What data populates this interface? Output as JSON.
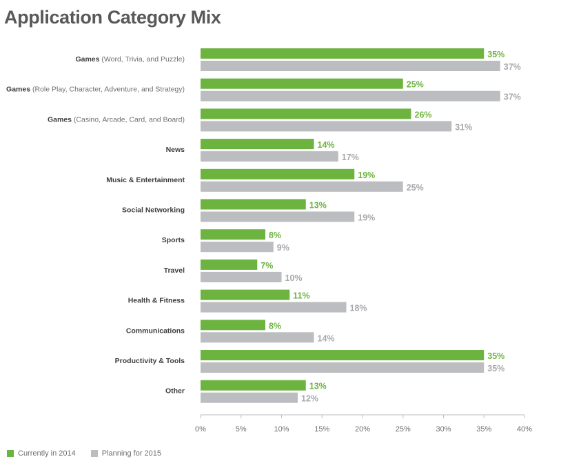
{
  "chart_data": {
    "type": "bar",
    "orientation": "horizontal",
    "title": "Application Category Mix",
    "categories": [
      {
        "bold": "Games",
        "light": "(Word, Trivia, and Puzzle)"
      },
      {
        "bold": "Games",
        "light": "(Role Play, Character, Adventure, and Strategy)"
      },
      {
        "bold": "Games",
        "light": "(Casino, Arcade, Card, and Board)"
      },
      {
        "bold": "News",
        "light": ""
      },
      {
        "bold": "Music & Entertainment",
        "light": ""
      },
      {
        "bold": "Social Networking",
        "light": ""
      },
      {
        "bold": "Sports",
        "light": ""
      },
      {
        "bold": "Travel",
        "light": ""
      },
      {
        "bold": "Health & Fitness",
        "light": ""
      },
      {
        "bold": "Communications",
        "light": ""
      },
      {
        "bold": "Productivity & Tools",
        "light": ""
      },
      {
        "bold": "Other",
        "light": ""
      }
    ],
    "series": [
      {
        "name": "Currently in 2014",
        "color": "#6db33f",
        "values": [
          35,
          25,
          26,
          14,
          19,
          13,
          8,
          7,
          11,
          8,
          35,
          13
        ],
        "labels": [
          "35%",
          "25%",
          "26%",
          "14%",
          "19%",
          "13%",
          "8%",
          "7%",
          "11%",
          "8%",
          "35%",
          "13%"
        ]
      },
      {
        "name": "Planning for 2015",
        "color": "#bcbdc0",
        "values": [
          37,
          37,
          31,
          17,
          25,
          19,
          9,
          10,
          18,
          14,
          35,
          12
        ],
        "labels": [
          "37%",
          "37%",
          "31%",
          "17%",
          "25%",
          "19%",
          "9%",
          "10%",
          "18%",
          "14%",
          "35%",
          "12%"
        ]
      }
    ],
    "xlim": [
      0,
      40
    ],
    "xticks": [
      0,
      5,
      10,
      15,
      20,
      25,
      30,
      35,
      40
    ],
    "xtick_labels": [
      "0%",
      "5%",
      "10%",
      "15%",
      "20%",
      "25%",
      "30%",
      "35%",
      "40%"
    ],
    "grid": false,
    "legend_position": "bottom-left"
  }
}
